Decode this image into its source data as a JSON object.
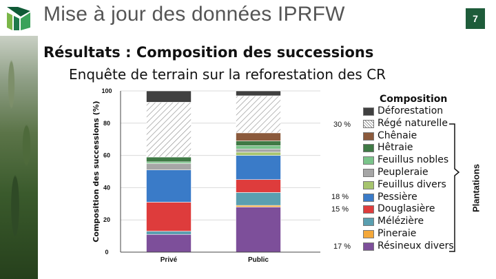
{
  "header": {
    "title": "Mise à jour des données IPRFW",
    "page_number": "7"
  },
  "section_title": "Résultats : Composition des successions",
  "section_subtitle": "Enquête de terrain sur la reforestation des CR",
  "legend": {
    "title": "Composition",
    "group_label": "Plantations"
  },
  "annotations": {
    "pct_30": "30 %",
    "pct_18": "18 %",
    "pct_15": "15 %",
    "pct_17": "17 %"
  },
  "colors": {
    "Déforestation": "#404040",
    "Régé naturelle": "hatch",
    "Chênaie": "#8b5a3c",
    "Hêtraie": "#3f7a45",
    "Feuillus nobles": "#7ac48a",
    "Peupleraie": "#a6a6a6",
    "Feuillus divers": "#a6c46e",
    "Pessière": "#3a7bc8",
    "Douglasière": "#de3c3c",
    "Mélézière": "#5a9fb0",
    "Pineraie": "#f4a83a",
    "Résineux divers": "#7d4f9a"
  },
  "chart_data": {
    "type": "bar",
    "stacked": true,
    "title": "",
    "xlabel": "",
    "ylabel": "Composition des successions (%)",
    "ylim": [
      0,
      100
    ],
    "yticks": [
      0,
      20,
      40,
      60,
      80,
      100
    ],
    "grid": true,
    "categories": [
      "Privé",
      "Public"
    ],
    "series": [
      {
        "name": "Résineux divers",
        "values": [
          11,
          28
        ]
      },
      {
        "name": "Pineraie",
        "values": [
          0,
          1
        ]
      },
      {
        "name": "Mélézière",
        "values": [
          2,
          8
        ]
      },
      {
        "name": "Douglasière",
        "values": [
          18,
          8
        ]
      },
      {
        "name": "Pessière",
        "values": [
          20,
          15
        ]
      },
      {
        "name": "Feuillus divers",
        "values": [
          0,
          2
        ]
      },
      {
        "name": "Peupleraie",
        "values": [
          4,
          2
        ]
      },
      {
        "name": "Feuillus nobles",
        "values": [
          1,
          2
        ]
      },
      {
        "name": "Hêtraie",
        "values": [
          3,
          3
        ]
      },
      {
        "name": "Chênaie",
        "values": [
          0,
          5
        ]
      },
      {
        "name": "Régé naturelle",
        "values": [
          34,
          23
        ]
      },
      {
        "name": "Déforestation",
        "values": [
          7,
          3
        ]
      }
    ]
  }
}
